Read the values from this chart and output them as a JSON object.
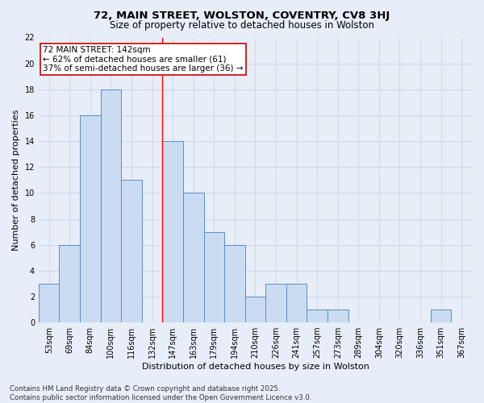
{
  "title1": "72, MAIN STREET, WOLSTON, COVENTRY, CV8 3HJ",
  "title2": "Size of property relative to detached houses in Wolston",
  "xlabel": "Distribution of detached houses by size in Wolston",
  "ylabel": "Number of detached properties",
  "categories": [
    "53sqm",
    "69sqm",
    "84sqm",
    "100sqm",
    "116sqm",
    "132sqm",
    "147sqm",
    "163sqm",
    "179sqm",
    "194sqm",
    "210sqm",
    "226sqm",
    "241sqm",
    "257sqm",
    "273sqm",
    "289sqm",
    "304sqm",
    "320sqm",
    "336sqm",
    "351sqm",
    "367sqm"
  ],
  "values": [
    3,
    6,
    16,
    18,
    11,
    0,
    14,
    10,
    7,
    6,
    2,
    3,
    3,
    1,
    1,
    0,
    0,
    0,
    0,
    1,
    0
  ],
  "bar_color": "#c9dcf2",
  "bar_edge_color": "#5b8ec4",
  "annotation_text": "72 MAIN STREET: 142sqm\n← 62% of detached houses are smaller (61)\n37% of semi-detached houses are larger (36) →",
  "annotation_box_color": "white",
  "annotation_box_edgecolor": "#cc0000",
  "red_line_x": 5.5,
  "ylim": [
    0,
    22
  ],
  "yticks": [
    0,
    2,
    4,
    6,
    8,
    10,
    12,
    14,
    16,
    18,
    20,
    22
  ],
  "footer": "Contains HM Land Registry data © Crown copyright and database right 2025.\nContains public sector information licensed under the Open Government Licence v3.0.",
  "background_color": "#e8eef8",
  "grid_color": "#d0daea",
  "title_fontsize": 9.5,
  "subtitle_fontsize": 8.5,
  "axis_label_fontsize": 8,
  "tick_fontsize": 7,
  "annotation_fontsize": 7.5,
  "footer_fontsize": 6.2
}
